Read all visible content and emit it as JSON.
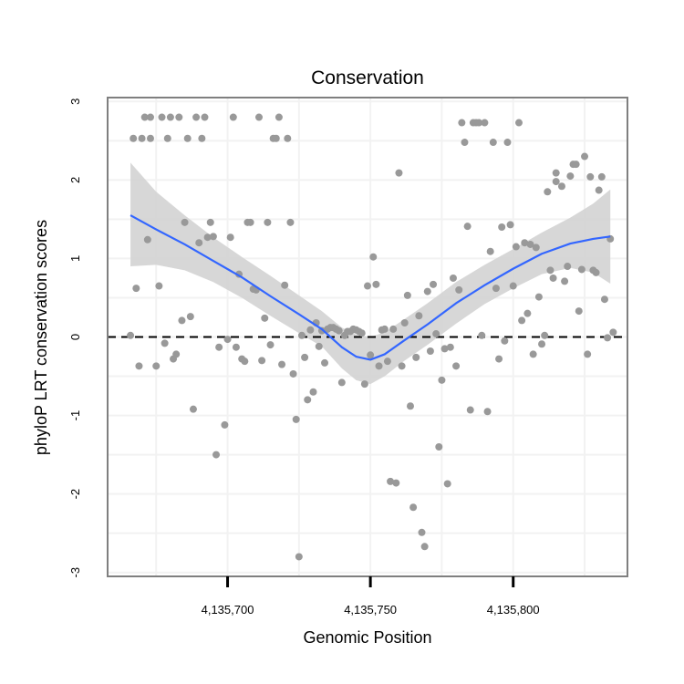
{
  "chart_data": {
    "type": "scatter",
    "title": "Conservation",
    "xlabel": "Genomic Position",
    "ylabel": "phyloP LRT conservation scores",
    "xlim": [
      4135658,
      4135840
    ],
    "ylim": [
      -3.05,
      3.05
    ],
    "x_ticks": [
      {
        "value": 4135700,
        "label": "4,135,700"
      },
      {
        "value": 4135750,
        "label": "4,135,750"
      },
      {
        "value": 4135800,
        "label": "4,135,800"
      }
    ],
    "y_ticks": [
      {
        "value": 3,
        "label": "3"
      },
      {
        "value": 2,
        "label": "2"
      },
      {
        "value": 1,
        "label": "1"
      },
      {
        "value": 0,
        "label": "0"
      },
      {
        "value": -1,
        "label": "-1"
      },
      {
        "value": -2,
        "label": "-2"
      },
      {
        "value": -3,
        "label": "-3"
      }
    ],
    "reference_line": {
      "y": 0,
      "style": "dashed"
    },
    "colors": {
      "points": "#999999",
      "smooth": "#3366ff",
      "ribbon": "#d3d3d3",
      "grid": "#f2f2f2",
      "border": "#7f7f7f",
      "reference": "#000000"
    },
    "points": [
      [
        4135666,
        0.02
      ],
      [
        4135667,
        2.53
      ],
      [
        4135668,
        0.62
      ],
      [
        4135669,
        -0.37
      ],
      [
        4135670,
        2.53
      ],
      [
        4135671,
        2.8
      ],
      [
        4135672,
        1.24
      ],
      [
        4135673,
        2.53
      ],
      [
        4135673,
        2.8
      ],
      [
        4135675,
        -0.37
      ],
      [
        4135676,
        0.65
      ],
      [
        4135677,
        2.8
      ],
      [
        4135678,
        -0.08
      ],
      [
        4135679,
        2.53
      ],
      [
        4135680,
        2.8
      ],
      [
        4135681,
        -0.28
      ],
      [
        4135682,
        -0.22
      ],
      [
        4135683,
        2.8
      ],
      [
        4135684,
        0.21
      ],
      [
        4135685,
        1.46
      ],
      [
        4135686,
        2.53
      ],
      [
        4135687,
        0.26
      ],
      [
        4135688,
        -0.92
      ],
      [
        4135689,
        2.8
      ],
      [
        4135690,
        1.2
      ],
      [
        4135691,
        2.53
      ],
      [
        4135692,
        2.8
      ],
      [
        4135693,
        1.27
      ],
      [
        4135694,
        1.46
      ],
      [
        4135695,
        1.28
      ],
      [
        4135696,
        -1.5
      ],
      [
        4135697,
        -0.13
      ],
      [
        4135699,
        -1.12
      ],
      [
        4135700,
        -0.03
      ],
      [
        4135701,
        1.27
      ],
      [
        4135702,
        2.8
      ],
      [
        4135703,
        -0.13
      ],
      [
        4135704,
        0.8
      ],
      [
        4135705,
        -0.28
      ],
      [
        4135706,
        -0.31
      ],
      [
        4135707,
        1.46
      ],
      [
        4135708,
        1.46
      ],
      [
        4135709,
        0.61
      ],
      [
        4135710,
        0.6
      ],
      [
        4135711,
        2.8
      ],
      [
        4135712,
        -0.3
      ],
      [
        4135713,
        0.24
      ],
      [
        4135714,
        1.46
      ],
      [
        4135715,
        -0.1
      ],
      [
        4135716,
        2.53
      ],
      [
        4135717,
        2.53
      ],
      [
        4135718,
        2.8
      ],
      [
        4135719,
        -0.35
      ],
      [
        4135720,
        0.66
      ],
      [
        4135721,
        2.53
      ],
      [
        4135722,
        1.46
      ],
      [
        4135723,
        -0.47
      ],
      [
        4135724,
        -1.05
      ],
      [
        4135725,
        -2.8
      ],
      [
        4135726,
        0.02
      ],
      [
        4135727,
        -0.26
      ],
      [
        4135728,
        -0.8
      ],
      [
        4135729,
        0.09
      ],
      [
        4135730,
        -0.7
      ],
      [
        4135731,
        0.18
      ],
      [
        4135732,
        -0.12
      ],
      [
        4135733,
        0.08
      ],
      [
        4135734,
        -0.33
      ],
      [
        4135735,
        0.1
      ],
      [
        4135736,
        0.12
      ],
      [
        4135737,
        0.12
      ],
      [
        4135738,
        0.1
      ],
      [
        4135739,
        0.08
      ],
      [
        4135740,
        -0.58
      ],
      [
        4135741,
        0.02
      ],
      [
        4135742,
        0.07
      ],
      [
        4135743,
        0.07
      ],
      [
        4135744,
        0.1
      ],
      [
        4135745,
        0.09
      ],
      [
        4135746,
        0.07
      ],
      [
        4135747,
        0.05
      ],
      [
        4135748,
        -0.6
      ],
      [
        4135749,
        0.65
      ],
      [
        4135750,
        -0.23
      ],
      [
        4135751,
        1.02
      ],
      [
        4135752,
        0.67
      ],
      [
        4135753,
        -0.37
      ],
      [
        4135754,
        0.09
      ],
      [
        4135755,
        0.1
      ],
      [
        4135756,
        -0.31
      ],
      [
        4135757,
        -1.84
      ],
      [
        4135758,
        0.1
      ],
      [
        4135759,
        -1.86
      ],
      [
        4135760,
        2.09
      ],
      [
        4135761,
        -0.37
      ],
      [
        4135762,
        0.18
      ],
      [
        4135763,
        0.53
      ],
      [
        4135764,
        -0.88
      ],
      [
        4135765,
        -2.17
      ],
      [
        4135766,
        -0.26
      ],
      [
        4135767,
        0.27
      ],
      [
        4135768,
        -2.49
      ],
      [
        4135769,
        -2.67
      ],
      [
        4135770,
        0.58
      ],
      [
        4135771,
        -0.18
      ],
      [
        4135772,
        0.67
      ],
      [
        4135773,
        0.04
      ],
      [
        4135774,
        -1.4
      ],
      [
        4135775,
        -0.55
      ],
      [
        4135776,
        -0.15
      ],
      [
        4135777,
        -1.87
      ],
      [
        4135778,
        -0.13
      ],
      [
        4135779,
        0.75
      ],
      [
        4135780,
        -0.37
      ],
      [
        4135781,
        0.6
      ],
      [
        4135782,
        2.73
      ],
      [
        4135783,
        2.48
      ],
      [
        4135784,
        1.41
      ],
      [
        4135785,
        -0.93
      ],
      [
        4135786,
        2.73
      ],
      [
        4135787,
        2.73
      ],
      [
        4135788,
        2.73
      ],
      [
        4135789,
        0.02
      ],
      [
        4135790,
        2.73
      ],
      [
        4135791,
        -0.95
      ],
      [
        4135792,
        1.09
      ],
      [
        4135793,
        2.48
      ],
      [
        4135794,
        0.62
      ],
      [
        4135795,
        -0.28
      ],
      [
        4135796,
        1.4
      ],
      [
        4135797,
        -0.05
      ],
      [
        4135798,
        2.48
      ],
      [
        4135799,
        1.43
      ],
      [
        4135800,
        0.65
      ],
      [
        4135801,
        1.15
      ],
      [
        4135802,
        2.73
      ],
      [
        4135803,
        0.21
      ],
      [
        4135804,
        1.2
      ],
      [
        4135805,
        0.3
      ],
      [
        4135806,
        1.18
      ],
      [
        4135807,
        -0.22
      ],
      [
        4135808,
        1.14
      ],
      [
        4135809,
        0.51
      ],
      [
        4135810,
        -0.09
      ],
      [
        4135811,
        0.02
      ],
      [
        4135812,
        1.85
      ],
      [
        4135813,
        0.85
      ],
      [
        4135814,
        0.75
      ],
      [
        4135815,
        1.98
      ],
      [
        4135815,
        2.09
      ],
      [
        4135817,
        1.92
      ],
      [
        4135818,
        0.71
      ],
      [
        4135819,
        0.9
      ],
      [
        4135820,
        2.05
      ],
      [
        4135821,
        2.2
      ],
      [
        4135822,
        2.2
      ],
      [
        4135823,
        0.33
      ],
      [
        4135824,
        0.86
      ],
      [
        4135825,
        2.3
      ],
      [
        4135826,
        -0.22
      ],
      [
        4135827,
        2.04
      ],
      [
        4135828,
        0.85
      ],
      [
        4135829,
        0.82
      ],
      [
        4135830,
        1.87
      ],
      [
        4135831,
        2.04
      ],
      [
        4135832,
        0.48
      ],
      [
        4135833,
        -0.01
      ],
      [
        4135834,
        1.25
      ],
      [
        4135835,
        0.06
      ]
    ],
    "smooth": [
      {
        "x": 4135666,
        "y": 1.55,
        "lo": 0.9,
        "hi": 2.22
      },
      {
        "x": 4135675,
        "y": 1.37,
        "lo": 0.92,
        "hi": 1.85
      },
      {
        "x": 4135685,
        "y": 1.18,
        "lo": 0.85,
        "hi": 1.55
      },
      {
        "x": 4135695,
        "y": 0.97,
        "lo": 0.7,
        "hi": 1.27
      },
      {
        "x": 4135705,
        "y": 0.76,
        "lo": 0.5,
        "hi": 1.02
      },
      {
        "x": 4135715,
        "y": 0.52,
        "lo": 0.27,
        "hi": 0.78
      },
      {
        "x": 4135725,
        "y": 0.29,
        "lo": 0.05,
        "hi": 0.53
      },
      {
        "x": 4135733,
        "y": 0.1,
        "lo": -0.12,
        "hi": 0.33
      },
      {
        "x": 4135740,
        "y": -0.13,
        "lo": -0.4,
        "hi": 0.12
      },
      {
        "x": 4135745,
        "y": -0.25,
        "lo": -0.55,
        "hi": 0.03
      },
      {
        "x": 4135750,
        "y": -0.29,
        "lo": -0.6,
        "hi": 0.0
      },
      {
        "x": 4135755,
        "y": -0.22,
        "lo": -0.5,
        "hi": 0.06
      },
      {
        "x": 4135762,
        "y": -0.04,
        "lo": -0.3,
        "hi": 0.23
      },
      {
        "x": 4135770,
        "y": 0.16,
        "lo": -0.1,
        "hi": 0.43
      },
      {
        "x": 4135780,
        "y": 0.43,
        "lo": 0.17,
        "hi": 0.7
      },
      {
        "x": 4135790,
        "y": 0.66,
        "lo": 0.42,
        "hi": 0.92
      },
      {
        "x": 4135800,
        "y": 0.87,
        "lo": 0.62,
        "hi": 1.12
      },
      {
        "x": 4135810,
        "y": 1.06,
        "lo": 0.8,
        "hi": 1.33
      },
      {
        "x": 4135820,
        "y": 1.19,
        "lo": 0.88,
        "hi": 1.52
      },
      {
        "x": 4135828,
        "y": 1.25,
        "lo": 0.82,
        "hi": 1.7
      },
      {
        "x": 4135834,
        "y": 1.28,
        "lo": 0.68,
        "hi": 1.88
      }
    ]
  }
}
